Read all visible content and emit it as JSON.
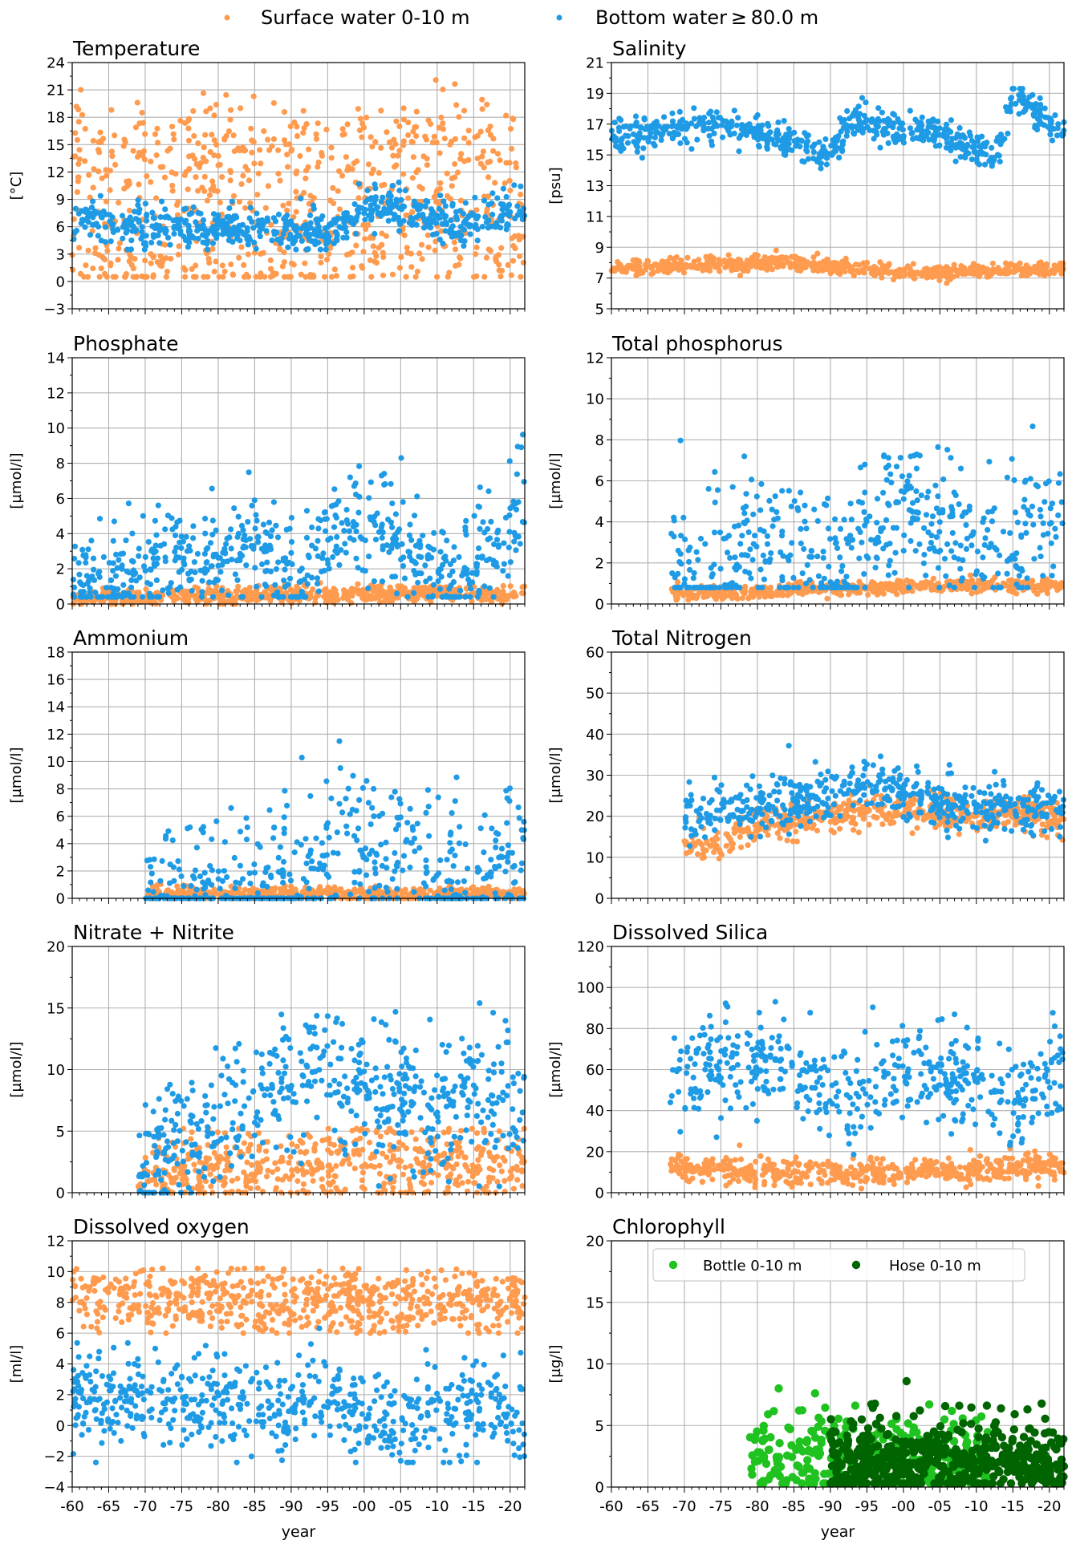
{
  "legend": {
    "items": [
      {
        "label": "Surface water 0-10 m",
        "color": "#ff9b4f"
      },
      {
        "label": "Bottom water ≥ 80.0 m",
        "color": "#1f9be6"
      }
    ]
  },
  "colors": {
    "surface": "#ff9b4f",
    "bottom": "#1f9be6",
    "bottle": "#1fc21f",
    "hose": "#006400",
    "grid": "#b0b0b0"
  },
  "chart_data": [
    {
      "id": "temperature",
      "type": "scatter",
      "title": "Temperature",
      "ylabel": "[°C]",
      "xlabel": "",
      "xlim": [
        1960,
        2022
      ],
      "ylim": [
        -3,
        24
      ],
      "yticks": [
        -3,
        0,
        3,
        6,
        9,
        12,
        15,
        18,
        21,
        24
      ],
      "yticklabels": [
        "−3",
        "0",
        "3",
        "6",
        "9",
        "12",
        "15",
        "18",
        "21",
        "24"
      ],
      "grid": true,
      "series": [
        {
          "name": "Surface water 0-10 m",
          "color": "#ff9b4f",
          "points_per_year": 12,
          "baseline": [
            [
              1960,
              8
            ],
            [
              2022,
              9.5
            ]
          ],
          "seasonal_amplitude": 8,
          "noise": 1.8,
          "band_floor": 0.5,
          "band_ceiling": 22.5
        },
        {
          "name": "Bottom water ≥ 80.0 m",
          "color": "#1f9be6",
          "points_per_year": 10,
          "baseline": [
            [
              1960,
              6.5
            ],
            [
              1975,
              5.8
            ],
            [
              1990,
              6
            ],
            [
              1995,
              5
            ],
            [
              2000,
              8
            ],
            [
              2005,
              8
            ],
            [
              2012,
              6
            ],
            [
              2022,
              8
            ]
          ],
          "seasonal_amplitude": 0.6,
          "noise": 1,
          "band_floor": 3.5,
          "band_ceiling": 11
        }
      ]
    },
    {
      "id": "salinity",
      "type": "scatter",
      "title": "Salinity",
      "ylabel": "[psu]",
      "xlabel": "",
      "xlim": [
        1960,
        2022
      ],
      "ylim": [
        5,
        21
      ],
      "yticks": [
        5,
        7,
        9,
        11,
        13,
        15,
        17,
        19,
        21
      ],
      "yticklabels": [
        "5",
        "7",
        "9",
        "11",
        "13",
        "15",
        "17",
        "19",
        "21"
      ],
      "grid": true,
      "series": [
        {
          "name": "Surface water 0-10 m",
          "color": "#ff9b4f",
          "points_per_year": 10,
          "baseline": [
            [
              1960,
              7.6
            ],
            [
              1985,
              8
            ],
            [
              2000,
              7.3
            ],
            [
              2022,
              7.6
            ]
          ],
          "seasonal_amplitude": 0.15,
          "noise": 0.2,
          "band_floor": 6.4,
          "band_ceiling": 8.9
        },
        {
          "name": "Bottom water ≥ 80.0 m",
          "color": "#1f9be6",
          "points_per_year": 10,
          "baseline": [
            [
              1960,
              16.3
            ],
            [
              1976,
              16.8
            ],
            [
              1990,
              15
            ],
            [
              1993,
              17.2
            ],
            [
              2003,
              16.5
            ],
            [
              2013,
              15
            ],
            [
              2015,
              19
            ],
            [
              2022,
              16
            ]
          ],
          "seasonal_amplitude": 0.4,
          "noise": 0.45,
          "band_floor": 13.8,
          "band_ceiling": 19.3
        }
      ]
    },
    {
      "id": "phosphate",
      "type": "scatter",
      "title": "Phosphate",
      "ylabel": "[µmol/l]",
      "xlabel": "",
      "xlim": [
        1960,
        2022
      ],
      "ylim": [
        0,
        14
      ],
      "yticks": [
        0,
        2,
        4,
        6,
        8,
        10,
        12,
        14
      ],
      "yticklabels": [
        "0",
        "2",
        "4",
        "6",
        "8",
        "10",
        "12",
        "14"
      ],
      "grid": true,
      "series": [
        {
          "name": "Surface water 0-10 m",
          "color": "#ff9b4f",
          "points_per_year": 10,
          "baseline": [
            [
              1960,
              0.3
            ],
            [
              1990,
              0.5
            ],
            [
              2005,
              0.6
            ],
            [
              2022,
              0.5
            ]
          ],
          "seasonal_amplitude": 0.15,
          "noise": 0.2,
          "band_floor": 0,
          "band_ceiling": 1.2
        },
        {
          "name": "Bottom water ≥ 80.0 m",
          "color": "#1f9be6",
          "points_per_year": 10,
          "baseline": [
            [
              1960,
              1.2
            ],
            [
              1970,
              1.6
            ],
            [
              1985,
              3.5
            ],
            [
              1991,
              0.8
            ],
            [
              1995,
              3.5
            ],
            [
              2000,
              5
            ],
            [
              2005,
              3
            ],
            [
              2012,
              1.5
            ],
            [
              2018,
              3
            ],
            [
              2022,
              6
            ]
          ],
          "seasonal_amplitude": 0.6,
          "noise": 1.4,
          "band_floor": 0.4,
          "band_ceiling": 12.2
        }
      ]
    },
    {
      "id": "total-phosphorus",
      "type": "scatter",
      "title": "Total phosphorus",
      "ylabel": "[µmol/l]",
      "xlabel": "",
      "xlim": [
        1960,
        2022
      ],
      "ylim": [
        0,
        12
      ],
      "yticks": [
        0,
        2,
        4,
        6,
        8,
        10,
        12
      ],
      "yticklabels": [
        "0",
        "2",
        "4",
        "6",
        "8",
        "10",
        "12"
      ],
      "grid": true,
      "series": [
        {
          "name": "Surface water 0-10 m",
          "color": "#ff9b4f",
          "points_per_year": 10,
          "start": 1968,
          "baseline": [
            [
              1968,
              0.5
            ],
            [
              1990,
              0.7
            ],
            [
              2003,
              0.9
            ],
            [
              2022,
              0.9
            ]
          ],
          "seasonal_amplitude": 0.1,
          "noise": 0.15,
          "band_floor": 0.2,
          "band_ceiling": 1.5
        },
        {
          "name": "Bottom water ≥ 80.0 m",
          "color": "#1f9be6",
          "points_per_year": 9,
          "start": 1968,
          "baseline": [
            [
              1968,
              1.5
            ],
            [
              1975,
              2
            ],
            [
              1985,
              3
            ],
            [
              1991,
              1.2
            ],
            [
              1997,
              4
            ],
            [
              2000,
              5
            ],
            [
              2006,
              3.5
            ],
            [
              2013,
              2
            ],
            [
              2022,
              5
            ]
          ],
          "seasonal_amplitude": 0.8,
          "noise": 1.6,
          "band_floor": 0.8,
          "band_ceiling": 9.6
        }
      ]
    },
    {
      "id": "ammonium",
      "type": "scatter",
      "title": "Ammonium",
      "ylabel": "[µmol/l]",
      "xlabel": "",
      "xlim": [
        1960,
        2022
      ],
      "ylim": [
        0,
        18
      ],
      "yticks": [
        0,
        2,
        4,
        6,
        8,
        10,
        12,
        14,
        16,
        18
      ],
      "yticklabels": [
        "0",
        "2",
        "4",
        "6",
        "8",
        "10",
        "12",
        "14",
        "16",
        "18"
      ],
      "grid": true,
      "series": [
        {
          "name": "Surface water 0-10 m",
          "color": "#ff9b4f",
          "points_per_year": 10,
          "start": 1970,
          "baseline": [
            [
              1970,
              0.3
            ],
            [
              2022,
              0.3
            ]
          ],
          "seasonal_amplitude": 0.1,
          "noise": 0.25,
          "band_floor": 0,
          "band_ceiling": 1.6
        },
        {
          "name": "Bottom water ≥ 80.0 m",
          "color": "#1f9be6",
          "points_per_year": 9,
          "start": 1970,
          "baseline": [
            [
              1970,
              0.4
            ],
            [
              1990,
              0.8
            ],
            [
              1997,
              4
            ],
            [
              2000,
              3
            ],
            [
              2005,
              3.5
            ],
            [
              2012,
              1
            ],
            [
              2022,
              2.5
            ]
          ],
          "seasonal_amplitude": 0.4,
          "noise": 2.6,
          "band_floor": 0,
          "band_ceiling": 16.4
        }
      ]
    },
    {
      "id": "total-nitrogen",
      "type": "scatter",
      "title": "Total Nitrogen",
      "ylabel": "[µmol/l]",
      "xlabel": "",
      "xlim": [
        1960,
        2022
      ],
      "ylim": [
        0,
        60
      ],
      "yticks": [
        0,
        10,
        20,
        30,
        40,
        50,
        60
      ],
      "yticklabels": [
        "0",
        "10",
        "20",
        "30",
        "40",
        "50",
        "60"
      ],
      "grid": true,
      "series": [
        {
          "name": "Surface water 0-10 m",
          "color": "#ff9b4f",
          "points_per_year": 10,
          "start": 1970,
          "baseline": [
            [
              1970,
              14
            ],
            [
              1975,
              12
            ],
            [
              1980,
              18
            ],
            [
              1995,
              21
            ],
            [
              2022,
              20
            ]
          ],
          "seasonal_amplitude": 1,
          "noise": 2,
          "band_floor": 6,
          "band_ceiling": 29
        },
        {
          "name": "Bottom water ≥ 80.0 m",
          "color": "#1f9be6",
          "points_per_year": 10,
          "start": 1970,
          "baseline": [
            [
              1970,
              19
            ],
            [
              1980,
              22
            ],
            [
              1990,
              25
            ],
            [
              1995,
              28
            ],
            [
              2005,
              23
            ],
            [
              2022,
              22
            ]
          ],
          "seasonal_amplitude": 1,
          "noise": 2.8,
          "band_floor": 7,
          "band_ceiling": 55.5
        }
      ]
    },
    {
      "id": "nitrate-nitrite",
      "type": "scatter",
      "title": "Nitrate + Nitrite",
      "ylabel": "[µmol/l]",
      "xlabel": "",
      "xlim": [
        1960,
        2022
      ],
      "ylim": [
        0,
        20
      ],
      "yticks": [
        0,
        5,
        10,
        15,
        20
      ],
      "yticklabels": [
        "0",
        "5",
        "10",
        "15",
        "20"
      ],
      "grid": true,
      "series": [
        {
          "name": "Surface water 0-10 m",
          "color": "#ff9b4f",
          "points_per_year": 10,
          "start": 1969,
          "baseline": [
            [
              1969,
              1
            ],
            [
              1995,
              2.5
            ],
            [
              2022,
              2
            ]
          ],
          "seasonal_amplitude": 1.5,
          "noise": 1.1,
          "band_floor": 0,
          "band_ceiling": 5.2
        },
        {
          "name": "Bottom water ≥ 80.0 m",
          "color": "#1f9be6",
          "points_per_year": 10,
          "start": 1969,
          "baseline": [
            [
              1969,
              2
            ],
            [
              1980,
              6
            ],
            [
              1994,
              10
            ],
            [
              2000,
              8
            ],
            [
              2010,
              7
            ],
            [
              2015,
              9
            ],
            [
              2022,
              6
            ]
          ],
          "seasonal_amplitude": 1.5,
          "noise": 2.6,
          "band_floor": 0,
          "band_ceiling": 15.4
        }
      ]
    },
    {
      "id": "dissolved-silica",
      "type": "scatter",
      "title": "Dissolved Silica",
      "ylabel": "[µmol/l]",
      "xlabel": "",
      "xlim": [
        1960,
        2022
      ],
      "ylim": [
        0,
        120
      ],
      "yticks": [
        0,
        20,
        40,
        60,
        80,
        100,
        120
      ],
      "yticklabels": [
        "0",
        "20",
        "40",
        "60",
        "80",
        "100",
        "120"
      ],
      "grid": true,
      "series": [
        {
          "name": "Surface water 0-10 m",
          "color": "#ff9b4f",
          "points_per_year": 10,
          "start": 1968,
          "baseline": [
            [
              1968,
              12
            ],
            [
              1985,
              9
            ],
            [
              2000,
              10
            ],
            [
              2022,
              13
            ]
          ],
          "seasonal_amplitude": 2,
          "noise": 2.8,
          "band_floor": 2,
          "band_ceiling": 24
        },
        {
          "name": "Bottom water ≥ 80.0 m",
          "color": "#1f9be6",
          "points_per_year": 9,
          "start": 1968,
          "baseline": [
            [
              1968,
              55
            ],
            [
              1975,
              65
            ],
            [
              1985,
              60
            ],
            [
              1992,
              42
            ],
            [
              2000,
              58
            ],
            [
              2005,
              55
            ],
            [
              2015,
              45
            ],
            [
              2022,
              62
            ]
          ],
          "seasonal_amplitude": 5,
          "noise": 11,
          "band_floor": 14,
          "band_ceiling": 112
        }
      ]
    },
    {
      "id": "dissolved-oxygen",
      "type": "scatter",
      "title": "Dissolved oxygen",
      "ylabel": "[ml/l]",
      "xlabel": "year",
      "xlim": [
        1960,
        2022
      ],
      "ylim": [
        -4,
        12
      ],
      "yticks": [
        -4,
        -2,
        0,
        2,
        4,
        6,
        8,
        10,
        12
      ],
      "yticklabels": [
        "−4",
        "−2",
        "0",
        "2",
        "4",
        "6",
        "8",
        "10",
        "12"
      ],
      "grid": true,
      "series": [
        {
          "name": "Surface water 0-10 m",
          "color": "#ff9b4f",
          "points_per_year": 11,
          "baseline": [
            [
              1960,
              8.2
            ],
            [
              2022,
              7.8
            ]
          ],
          "seasonal_amplitude": 1.2,
          "noise": 0.6,
          "band_floor": 6,
          "band_ceiling": 10.2
        },
        {
          "name": "Bottom water ≥ 80.0 m",
          "color": "#1f9be6",
          "points_per_year": 10,
          "baseline": [
            [
              1960,
              2
            ],
            [
              1990,
              1
            ],
            [
              1994,
              2.5
            ],
            [
              2000,
              0.2
            ],
            [
              2010,
              0.8
            ],
            [
              2022,
              0.5
            ]
          ],
          "seasonal_amplitude": 0.5,
          "noise": 1.4,
          "band_floor": -2.4,
          "band_ceiling": 7
        }
      ]
    },
    {
      "id": "chlorophyll",
      "type": "scatter",
      "title": "Chlorophyll",
      "ylabel": "[µg/l]",
      "xlabel": "year",
      "xlim": [
        1960,
        2022
      ],
      "ylim": [
        0,
        20
      ],
      "yticks": [
        0,
        5,
        10,
        15,
        20
      ],
      "yticklabels": [
        "0",
        "5",
        "10",
        "15",
        "20"
      ],
      "grid": true,
      "legend": {
        "placement": "top-center",
        "items": [
          {
            "label": "Bottle 0-10 m",
            "color": "#1fc21f"
          },
          {
            "label": "Hose 0-10 m",
            "color": "#006400"
          }
        ]
      },
      "series": [
        {
          "name": "Bottle 0-10 m",
          "color": "#1fc21f",
          "points_per_year": 9,
          "start": 1979,
          "end": 2012,
          "baseline": [
            [
              1979,
              2
            ],
            [
              2000,
              2.5
            ],
            [
              2012,
              2
            ]
          ],
          "seasonal_amplitude": 0.4,
          "noise": 1.6,
          "band_floor": 0.3,
          "band_ceiling": 13.5,
          "radius": 5.2
        },
        {
          "name": "Hose 0-10 m",
          "color": "#006400",
          "points_per_year": 16,
          "start": 1990,
          "end": 2022,
          "baseline": [
            [
              1990,
              2
            ],
            [
              2022,
              2
            ]
          ],
          "seasonal_amplitude": 0.4,
          "noise": 1.5,
          "band_floor": 0.3,
          "band_ceiling": 9.5,
          "radius": 5.2
        }
      ]
    }
  ],
  "shared_x": {
    "ticks": [
      1960,
      1965,
      1970,
      1975,
      1980,
      1985,
      1990,
      1995,
      2000,
      2005,
      2010,
      2015,
      2020
    ],
    "ticklabels": [
      "-60",
      "-65",
      "-70",
      "-75",
      "-80",
      "-85",
      "-90",
      "-95",
      "-00",
      "-05",
      "-10",
      "-15",
      "-20"
    ]
  }
}
